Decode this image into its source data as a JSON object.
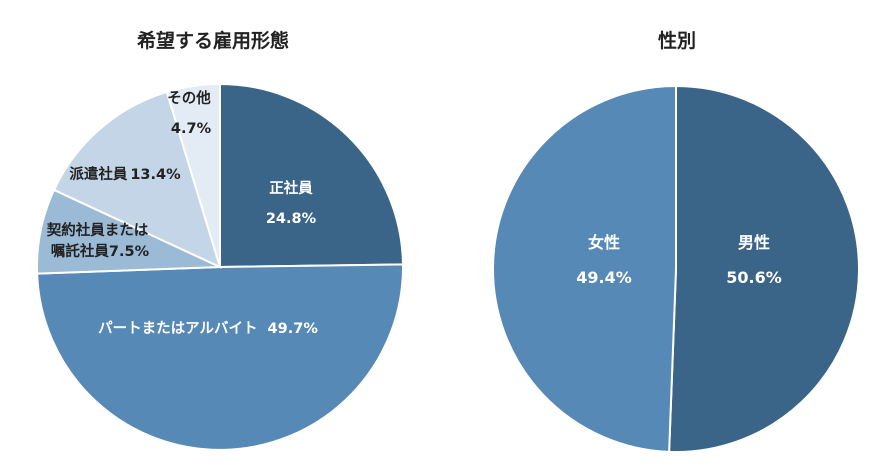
{
  "chart_data": [
    {
      "type": "pie",
      "title": "希望する雇用形態",
      "slices": [
        {
          "label": "正社員",
          "value": 24.8,
          "value_text": "24.8%",
          "color": "#3a6589"
        },
        {
          "label": "パートまたはアルバイト",
          "value": 49.7,
          "value_text": "49.7%",
          "color": "#5689b6"
        },
        {
          "label": "契約社員または 嘱託社員",
          "value": 7.5,
          "value_text": "7.5%",
          "color": "#9bbad5"
        },
        {
          "label": "派遣社員",
          "value": 13.4,
          "value_text": "13.4%",
          "color": "#c3d5e6"
        },
        {
          "label": "その他",
          "value": 4.7,
          "value_text": "4.7%",
          "color": "#e3ecf5"
        }
      ]
    },
    {
      "type": "pie",
      "title": "性別",
      "slices": [
        {
          "label": "男性",
          "value": 50.6,
          "value_text": "50.6%",
          "color": "#3a6589"
        },
        {
          "label": "女性",
          "value": 49.4,
          "value_text": "49.4%",
          "color": "#5689b6"
        }
      ]
    }
  ]
}
